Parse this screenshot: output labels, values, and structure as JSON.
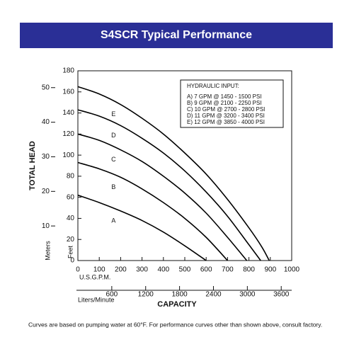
{
  "chart_data": {
    "type": "line",
    "title": "S4SCR Typical Performance",
    "y_label": "TOTAL HEAD",
    "y_unit_label": "Feet",
    "y2_unit_label": "Meters",
    "x_unit_label": "U.S.G.P.M.",
    "x2_unit_label": "Liters/Minute",
    "x_label": "CAPACITY",
    "xlim": [
      0,
      1000
    ],
    "xticks": [
      0,
      100,
      200,
      300,
      400,
      500,
      600,
      700,
      800,
      900,
      1000
    ],
    "ylim": [
      0,
      180
    ],
    "yticks": [
      0,
      20,
      40,
      60,
      80,
      100,
      120,
      140,
      160,
      180
    ],
    "y2lim": [
      0,
      54.864
    ],
    "y2ticks": [
      10,
      20,
      30,
      40,
      50
    ],
    "x2lim": [
      0,
      3785.41
    ],
    "x2ticks": [
      600,
      1200,
      1800,
      2400,
      3000,
      3600
    ],
    "color": "#000000",
    "series": [
      {
        "name": "A",
        "x": [
          0,
          100,
          200,
          300,
          400,
          500,
          600
        ],
        "values": [
          62,
          55,
          47,
          38,
          27,
          14,
          0
        ]
      },
      {
        "name": "B",
        "x": [
          0,
          100,
          200,
          300,
          400,
          500,
          600,
          700
        ],
        "values": [
          93,
          87,
          79,
          68,
          55,
          40,
          22,
          0
        ]
      },
      {
        "name": "C",
        "x": [
          0,
          100,
          200,
          300,
          400,
          500,
          600,
          700,
          790
        ],
        "values": [
          120,
          114,
          105,
          94,
          80,
          64,
          45,
          22,
          0
        ]
      },
      {
        "name": "D",
        "x": [
          0,
          100,
          200,
          300,
          400,
          500,
          600,
          700,
          800,
          855
        ],
        "values": [
          143,
          137,
          128,
          116,
          102,
          85,
          65,
          42,
          15,
          0
        ]
      },
      {
        "name": "E",
        "x": [
          0,
          100,
          200,
          300,
          400,
          500,
          600,
          700,
          800,
          860,
          895
        ],
        "values": [
          165,
          158,
          148,
          135,
          120,
          102,
          82,
          58,
          31,
          13,
          0
        ]
      }
    ],
    "legend": {
      "title": "HYDRAULIC INPUT:",
      "entries": [
        "A)  7 GPM @ 1450 - 1500 PSI",
        "B)  9 GPM @ 2100 - 2250 PSI",
        "C) 10 GPM @ 2700 - 2800 PSI",
        "D) 11 GPM @ 3200 - 3400 PSI",
        "E) 12 GPM @ 3850 - 4000 PSI"
      ]
    },
    "footnote": "Curves are based on pumping water at 60°F. For performance curves other than shown above, consult factory."
  }
}
